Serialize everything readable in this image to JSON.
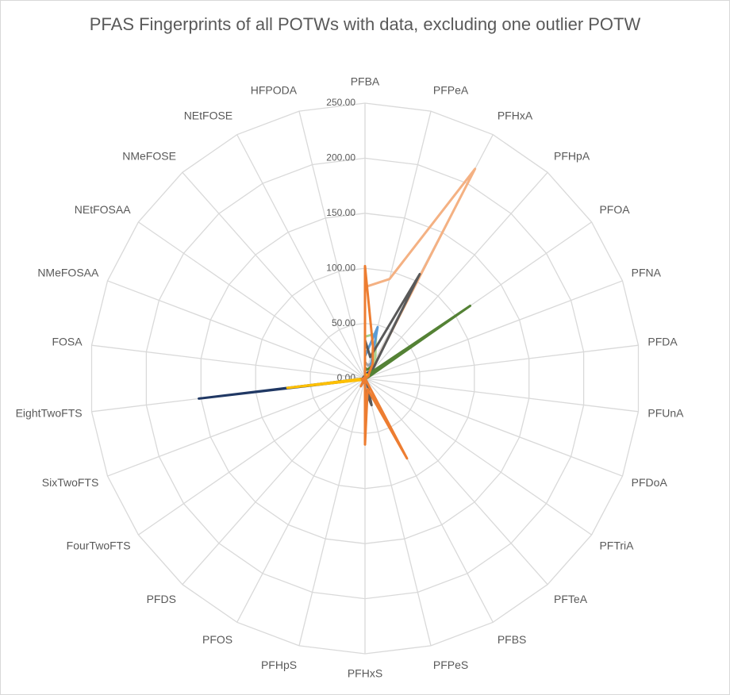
{
  "chart_data": {
    "type": "radar",
    "title": "PFAS Fingerprints of all POTWs with data, excluding one outlier POTW",
    "categories": [
      "PFBA",
      "PFPeA",
      "PFHxA",
      "PFHpA",
      "PFOA",
      "PFNA",
      "PFDA",
      "PFUnA",
      "PFDoA",
      "PFTriA",
      "PFTeA",
      "PFBS",
      "PFPeS",
      "PFHxS",
      "PFHpS",
      "PFOS",
      "PFDS",
      "FourTwoFTS",
      "SixTwoFTS",
      "EightTwoFTS",
      "FOSA",
      "NMeFOSAA",
      "NEtFOSAA",
      "NMeFOSE",
      "NEtFOSE",
      "HFPODA"
    ],
    "ylim": [
      0,
      250
    ],
    "yticks": [
      {
        "value": 0,
        "label": "0.00"
      },
      {
        "value": 50,
        "label": "50.00"
      },
      {
        "value": 100,
        "label": "100.00"
      },
      {
        "value": 150,
        "label": "150.00"
      },
      {
        "value": 200,
        "label": "200.00"
      },
      {
        "value": 250,
        "label": "250.00"
      }
    ],
    "grid": true,
    "series": [
      {
        "color": "#f4b183",
        "values": [
          83,
          93,
          215,
          8,
          5,
          2,
          1,
          0,
          0,
          0,
          0,
          3,
          2,
          4,
          0,
          3,
          0,
          2,
          1,
          3,
          0,
          1,
          1,
          0,
          0,
          0
        ]
      },
      {
        "color": "#a5a5a5",
        "values": [
          15,
          12,
          18,
          5,
          5,
          1,
          0,
          0,
          0,
          0,
          0,
          4,
          3,
          15,
          0,
          5,
          0,
          2,
          1,
          3,
          0,
          1,
          0,
          0,
          0,
          0
        ]
      },
      {
        "color": "#a9d18e",
        "values": [
          38,
          42,
          20,
          6,
          4,
          1,
          0,
          0,
          0,
          0,
          0,
          3,
          2,
          4,
          0,
          3,
          0,
          1,
          1,
          2,
          0,
          0,
          0,
          0,
          0,
          0
        ]
      },
      {
        "color": "#5b9bd5",
        "values": [
          20,
          48,
          10,
          4,
          3,
          1,
          0,
          0,
          0,
          0,
          0,
          5,
          2,
          8,
          0,
          6,
          0,
          2,
          1,
          2,
          0,
          1,
          0,
          0,
          0,
          0
        ]
      },
      {
        "color": "#595959",
        "values": [
          35,
          20,
          107,
          10,
          8,
          2,
          1,
          0,
          0,
          0,
          0,
          4,
          25,
          10,
          0,
          5,
          0,
          3,
          2,
          4,
          0,
          2,
          1,
          0,
          2,
          0
        ]
      },
      {
        "color": "#548235",
        "values": [
          10,
          8,
          12,
          6,
          116,
          3,
          1,
          0,
          0,
          0,
          0,
          3,
          2,
          4,
          0,
          3,
          0,
          1,
          1,
          2,
          0,
          0,
          0,
          0,
          0,
          0
        ]
      },
      {
        "color": "#203864",
        "values": [
          5,
          4,
          6,
          3,
          4,
          1,
          0,
          0,
          0,
          0,
          0,
          2,
          1,
          3,
          0,
          4,
          0,
          2,
          3,
          152,
          0,
          1,
          0,
          0,
          0,
          0
        ]
      },
      {
        "color": "#ffc000",
        "values": [
          5,
          3,
          4,
          2,
          3,
          1,
          0,
          0,
          0,
          0,
          0,
          2,
          1,
          2,
          0,
          3,
          0,
          2,
          4,
          71,
          0,
          0,
          0,
          0,
          0,
          0
        ]
      },
      {
        "color": "#ed7d31",
        "values": [
          102,
          30,
          15,
          5,
          4,
          1,
          0,
          0,
          0,
          0,
          0,
          82,
          10,
          60,
          0,
          8,
          0,
          3,
          2,
          3,
          0,
          1,
          1,
          0,
          0,
          0
        ]
      }
    ]
  }
}
